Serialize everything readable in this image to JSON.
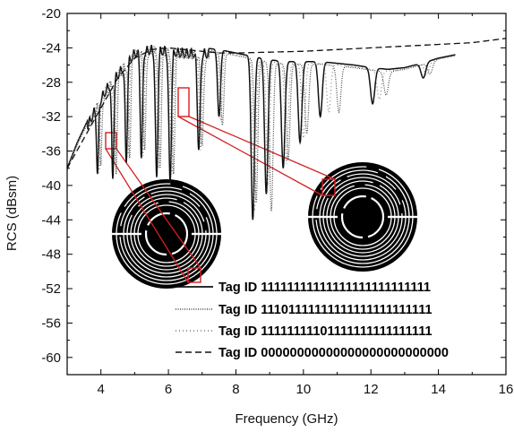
{
  "chart_data": {
    "type": "line",
    "xlabel": "Frequency (GHz)",
    "ylabel": "RCS (dBsm)",
    "xlim": [
      3,
      16
    ],
    "ylim": [
      -62,
      -20
    ],
    "x_ticks": [
      4,
      6,
      8,
      10,
      12,
      14,
      16
    ],
    "y_ticks": [
      -20,
      -24,
      -28,
      -32,
      -36,
      -40,
      -44,
      -48,
      -52,
      -56,
      -60
    ],
    "grid": false,
    "legend_position": "bottom-right",
    "series": [
      {
        "name": "Tag ID 11111111111111111111111111",
        "style": "solid",
        "x": [
          3.0,
          3.3,
          3.6,
          3.9,
          4.2,
          4.5,
          5.0,
          5.5,
          6.0,
          6.5,
          7.0,
          7.5,
          8.0,
          8.5,
          9.0,
          9.5,
          10.0,
          10.5,
          11.0,
          11.5,
          12.0,
          12.5,
          13.0,
          13.5,
          14.0,
          14.5
        ],
        "y": [
          -38.0,
          -35.0,
          -32.5,
          -30.0,
          -28.0,
          -26.5,
          -24.0,
          -23.6,
          -23.8,
          -24.0,
          -24.0,
          -24.2,
          -24.6,
          -25.0,
          -25.4,
          -25.6,
          -25.6,
          -25.6,
          -25.8,
          -26.0,
          -26.3,
          -26.5,
          -26.3,
          -25.8,
          -25.2,
          -24.8
        ],
        "dips": [
          [
            3.9,
            -38.0
          ],
          [
            4.35,
            -38.5
          ],
          [
            4.75,
            -36.5
          ],
          [
            5.2,
            -36.0
          ],
          [
            5.65,
            -38.5
          ],
          [
            6.05,
            -39.0
          ],
          [
            6.9,
            -35.0
          ],
          [
            7.5,
            -32.0
          ],
          [
            8.5,
            -44.0
          ],
          [
            8.9,
            -41.0
          ],
          [
            9.4,
            -38.0
          ],
          [
            9.9,
            -35.0
          ],
          [
            10.5,
            -32.0
          ],
          [
            12.05,
            -30.5
          ],
          [
            13.55,
            -27.5
          ]
        ]
      },
      {
        "name": "Tag ID 11101111111111111111111111",
        "style": "dotted",
        "x": [
          3.0,
          3.3,
          3.6,
          3.9,
          4.2,
          4.5,
          5.0,
          5.5,
          6.0,
          6.5,
          7.0,
          7.5,
          8.0,
          8.5,
          9.0,
          9.5,
          10.0,
          10.5,
          11.0,
          11.5,
          12.0,
          12.5,
          13.0,
          13.5,
          14.0,
          14.5
        ],
        "y": [
          -38.2,
          -35.3,
          -32.8,
          -30.3,
          -28.3,
          -26.8,
          -24.2,
          -23.8,
          -24.0,
          -24.2,
          -24.3,
          -24.5,
          -24.9,
          -25.3,
          -25.7,
          -25.9,
          -25.9,
          -25.9,
          -26.1,
          -26.3,
          -26.6,
          -26.8,
          -26.5,
          -26.0,
          -25.3,
          -24.9
        ],
        "dips": [
          [
            4.0,
            -37.0
          ],
          [
            4.45,
            -38.0
          ],
          [
            4.85,
            -36.0
          ],
          [
            5.3,
            -35.0
          ],
          [
            5.75,
            -37.5
          ],
          [
            6.15,
            -38.0
          ],
          [
            7.0,
            -34.5
          ],
          [
            7.6,
            -33.0
          ],
          [
            8.6,
            -42.0
          ],
          [
            9.05,
            -43.0
          ],
          [
            9.55,
            -37.0
          ],
          [
            10.1,
            -34.0
          ],
          [
            11.05,
            -31.5
          ],
          [
            12.45,
            -29.5
          ],
          [
            13.75,
            -27.0
          ]
        ]
      },
      {
        "name": "Tag ID 11111111101111111111111111",
        "style": "dash-dot",
        "x": [
          3.0,
          3.3,
          3.6,
          3.9,
          4.2,
          4.5,
          5.0,
          5.5,
          6.0,
          6.5,
          7.0,
          7.5,
          8.0,
          8.5,
          9.0,
          9.5,
          10.0,
          10.5,
          11.0,
          11.5,
          12.0,
          12.5,
          13.0,
          13.5,
          14.0,
          14.5
        ],
        "y": [
          -38.1,
          -35.1,
          -32.6,
          -30.1,
          -28.1,
          -26.6,
          -24.1,
          -23.7,
          -23.9,
          -24.1,
          -24.2,
          -24.4,
          -24.8,
          -25.2,
          -25.6,
          -25.8,
          -25.8,
          -25.8,
          -26.0,
          -26.2,
          -26.5,
          -26.7,
          -26.4,
          -25.9,
          -25.3,
          -24.9
        ],
        "dips": [
          [
            3.95,
            -37.5
          ],
          [
            4.4,
            -37.0
          ],
          [
            4.8,
            -36.2
          ],
          [
            5.25,
            -35.5
          ],
          [
            5.7,
            -38.0
          ],
          [
            6.1,
            -38.5
          ],
          [
            6.95,
            -34.8
          ],
          [
            7.55,
            -32.5
          ],
          [
            8.55,
            -43.0
          ],
          [
            8.95,
            -40.0
          ],
          [
            9.5,
            -37.5
          ],
          [
            10.0,
            -34.5
          ],
          [
            10.75,
            -31.5
          ],
          [
            12.25,
            -30.0
          ],
          [
            13.65,
            -27.2
          ]
        ]
      },
      {
        "name": "Tag ID 00000000000000000000000000",
        "style": "dashed",
        "x": [
          3.0,
          3.5,
          4.0,
          4.5,
          5.0,
          5.5,
          6.0,
          6.5,
          7.0,
          7.5,
          8.0,
          9.0,
          10.0,
          11.0,
          12.0,
          13.0,
          14.0,
          15.0,
          16.0
        ],
        "y": [
          -38.0,
          -34.5,
          -31.0,
          -27.5,
          -25.2,
          -24.2,
          -24.0,
          -24.2,
          -24.4,
          -24.6,
          -24.6,
          -24.5,
          -24.4,
          -24.2,
          -24.0,
          -23.8,
          -23.6,
          -23.4,
          -22.9
        ],
        "dips": []
      }
    ]
  }
}
